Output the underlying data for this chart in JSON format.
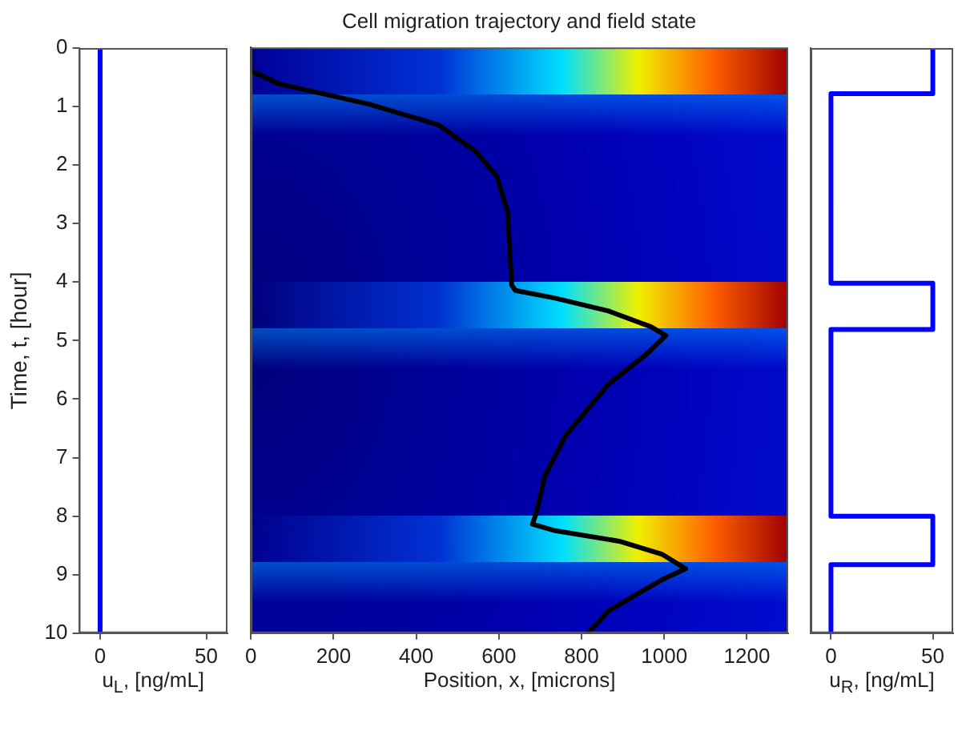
{
  "chart_data": [
    {
      "type": "line",
      "xlabel": "u$_{L}$, [ng/mL]",
      "ylabel": "Time, t, [hour]",
      "xlim": [
        -10,
        60
      ],
      "xticks": [
        0,
        50
      ],
      "ylim": [
        10,
        0
      ],
      "yticks": [
        0,
        1,
        2,
        3,
        4,
        5,
        6,
        7,
        8,
        9,
        10
      ],
      "marker": "none",
      "line_style": "solid",
      "series": [
        {
          "color": "#0000ff",
          "x": [
            0,
            0
          ],
          "values": [
            0,
            10
          ]
        }
      ]
    },
    {
      "type": "line",
      "title": "Cell migration trajectory and field state",
      "xlabel": "Position, x, [microns]",
      "xlim": [
        0,
        1300
      ],
      "xticks": [
        0,
        200,
        400,
        600,
        800,
        1000,
        1200
      ],
      "ylim": [
        10,
        0
      ],
      "yticks": [
        0,
        1,
        2,
        3,
        4,
        5,
        6,
        7,
        8,
        9,
        10
      ],
      "tick_labels": "x",
      "marker": "none",
      "line_style": "solid",
      "series": [
        {
          "color": "#000000",
          "x": [
            0,
            0,
            67,
            286,
            453,
            543,
            595,
            621,
            631,
            640,
            736,
            865,
            968,
            1004,
            955,
            865,
            762,
            711,
            691,
            681,
            736,
            891,
            994,
            1052,
            994,
            865,
            816
          ],
          "values": [
            0,
            0.4,
            0.62,
            0.97,
            1.32,
            1.77,
            2.2,
            2.8,
            4.06,
            4.15,
            4.28,
            4.5,
            4.77,
            4.92,
            5.25,
            5.75,
            6.62,
            7.32,
            7.94,
            8.14,
            8.25,
            8.43,
            8.65,
            8.9,
            9.09,
            9.62,
            10
          ]
        }
      ]
    },
    {
      "type": "line",
      "xlabel": "u$_{R}$, [ng/mL]",
      "xlim": [
        -10,
        60
      ],
      "xticks": [
        0,
        50
      ],
      "ylim": [
        10,
        0
      ],
      "yticks": [
        0,
        1,
        2,
        3,
        4,
        5,
        6,
        7,
        8,
        9,
        10
      ],
      "tick_labels": "x",
      "marker": "none",
      "line_style": "solid",
      "series": [
        {
          "color": "#0000ff",
          "x": [
            50,
            50,
            0,
            0,
            50,
            50,
            0,
            0,
            50,
            50,
            0,
            0
          ],
          "values": [
            0,
            0.78,
            0.78,
            4.02,
            4.02,
            4.81,
            4.81,
            8.0,
            8.0,
            8.83,
            8.83,
            10
          ]
        }
      ]
    }
  ]
}
